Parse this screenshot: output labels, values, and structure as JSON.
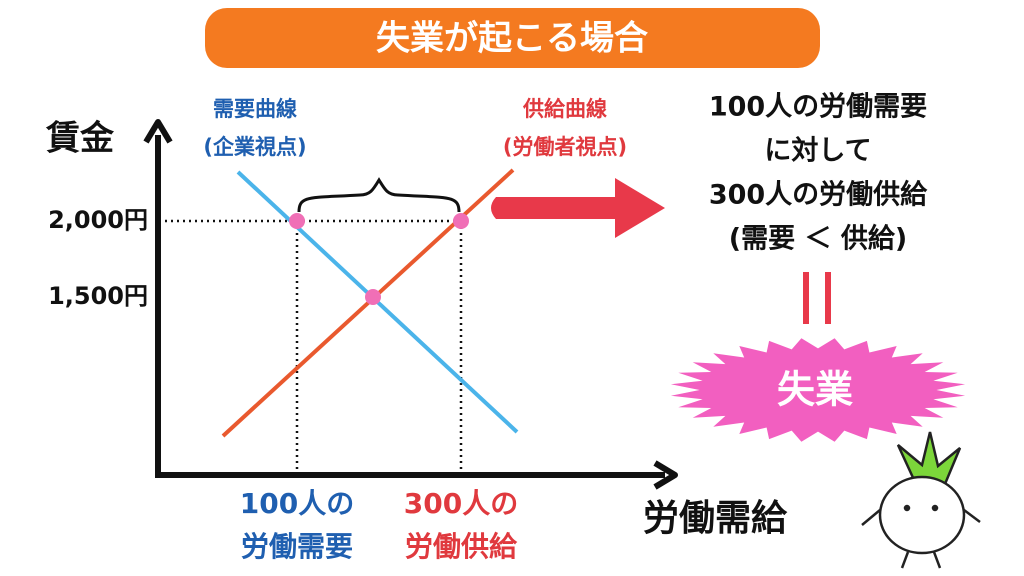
{
  "header": {
    "title": "失業が起こる場合"
  },
  "axes": {
    "y_label": "賃金",
    "x_label": "労働需給"
  },
  "ticks": [
    "2,000円",
    "1,500円"
  ],
  "curves": {
    "demand": {
      "name": "需要曲線",
      "note": "(企業視点)"
    },
    "supply": {
      "name": "供給曲線",
      "note": "(労働者視点)"
    }
  },
  "quantities": {
    "demand": [
      "100人の",
      "労働需要"
    ],
    "supply": [
      "300人の",
      "労働供給"
    ]
  },
  "explanation": [
    "100人の労働需要",
    "に対して",
    "300人の労働供給",
    "(需要 ＜ 供給)"
  ],
  "result": "失業"
}
